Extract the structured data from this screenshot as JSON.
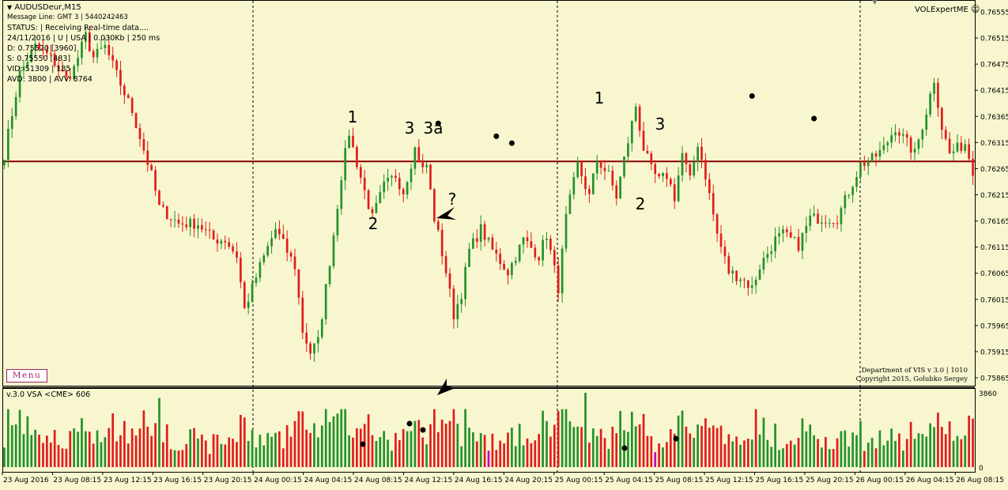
{
  "chart": {
    "symbol_title": "AUDUSDeur,M15",
    "info_lines": [
      "Message Line: GMT 3 | 5440242463",
      "STATUS: | Receiving Real-time data....",
      "24/11/2016 | U | USA | 0.030Kb | 250 ms",
      "D: 0.75520  [3960]",
      "S: 0.75550  [483]",
      "VID: 51309 | 185",
      "AVD: 3800 | AVV: 8764"
    ],
    "expert_name": "VOLExpertME",
    "menu_label": "Menu",
    "copyright_line1": "Department of VIS  v 3.0 | 1010",
    "copyright_line2": "Copyright 2015, Golubko Sergey",
    "resistance_price": 0.76276,
    "price_ylim": [
      0.75865,
      0.76555
    ],
    "price_axis_labels": [
      "0.76555",
      "0.76515",
      "0.76475",
      "0.76415",
      "0.76365",
      "0.76315",
      "0.76265",
      "0.76215",
      "0.76165",
      "0.76115",
      "0.76065",
      "0.76015",
      "0.75965",
      "0.75915",
      "0.75865"
    ],
    "annotations": [
      {
        "label": "1"
      },
      {
        "label": "3"
      },
      {
        "label": "3a"
      },
      {
        "label": "?"
      },
      {
        "label": "2"
      },
      {
        "label": "1"
      },
      {
        "label": "3"
      },
      {
        "label": "2"
      }
    ]
  },
  "indicator": {
    "title": "v.3.0 VSA <CME> 606",
    "axis_max_label": "3860",
    "axis_zero_label": "0"
  },
  "time_axis_labels": [
    "23 Aug 2016",
    "23 Aug 08:15",
    "23 Aug 12:15",
    "23 Aug 16:15",
    "23 Aug 20:15",
    "24 Aug 00:15",
    "24 Aug 04:15",
    "24 Aug 08:15",
    "24 Aug 12:15",
    "24 Aug 16:15",
    "24 Aug 20:15",
    "25 Aug 00:15",
    "25 Aug 04:15",
    "25 Aug 08:15",
    "25 Aug 12:15",
    "25 Aug 16:15",
    "25 Aug 20:15",
    "26 Aug 00:15",
    "26 Aug 04:15",
    "26 Aug 08:15"
  ],
  "colors": {
    "background": "#f8f6cf",
    "bull": "#22922b",
    "bear": "#e11c1c",
    "resistance_line": "#8b0000",
    "separator": "#000000",
    "grid": "#000000",
    "menu_border": "#a0206a"
  },
  "chart_data": {
    "type": "candlestick",
    "symbol": "AUDUSDeur",
    "timeframe": "M15",
    "ylim": [
      0.75865,
      0.76555
    ],
    "resistance_level": 0.76276,
    "path": [
      [
        0,
        0.7629
      ],
      [
        4,
        0.7644
      ],
      [
        8,
        0.7649
      ],
      [
        12,
        0.7647
      ],
      [
        16,
        0.7643
      ],
      [
        18,
        0.7645
      ],
      [
        21,
        0.7651
      ],
      [
        23,
        0.7647
      ],
      [
        26,
        0.7649
      ],
      [
        30,
        0.7642
      ],
      [
        33,
        0.7637
      ],
      [
        38,
        0.7625
      ],
      [
        40,
        0.7619
      ],
      [
        45,
        0.7616
      ],
      [
        50,
        0.7616
      ],
      [
        54,
        0.7613
      ],
      [
        57,
        0.7613
      ],
      [
        60,
        0.761
      ],
      [
        62,
        0.76
      ],
      [
        66,
        0.7608
      ],
      [
        70,
        0.7615
      ],
      [
        75,
        0.7608
      ],
      [
        77,
        0.7596
      ],
      [
        79,
        0.7592
      ],
      [
        81,
        0.7594
      ],
      [
        85,
        0.7614
      ],
      [
        87,
        0.7625
      ],
      [
        89,
        0.7633
      ],
      [
        90,
        0.763
      ],
      [
        93,
        0.7622
      ],
      [
        95,
        0.7617
      ],
      [
        98,
        0.7623
      ],
      [
        101,
        0.7625
      ],
      [
        103,
        0.7622
      ],
      [
        106,
        0.763
      ],
      [
        108,
        0.7626
      ],
      [
        109,
        0.7627
      ],
      [
        111,
        0.7617
      ],
      [
        112,
        0.7614
      ],
      [
        114,
        0.7607
      ],
      [
        116,
        0.7599
      ],
      [
        118,
        0.7603
      ],
      [
        120,
        0.7611
      ],
      [
        123,
        0.7615
      ],
      [
        126,
        0.7611
      ],
      [
        130,
        0.7607
      ],
      [
        134,
        0.7613
      ],
      [
        138,
        0.761
      ],
      [
        140,
        0.7614
      ],
      [
        143,
        0.7604
      ],
      [
        145,
        0.7617
      ],
      [
        148,
        0.7627
      ],
      [
        151,
        0.7621
      ],
      [
        153,
        0.7628
      ],
      [
        156,
        0.7625
      ],
      [
        158,
        0.7621
      ],
      [
        160,
        0.7628
      ],
      [
        163,
        0.7638
      ],
      [
        165,
        0.763
      ],
      [
        167,
        0.7626
      ],
      [
        169,
        0.7624
      ],
      [
        171,
        0.7625
      ],
      [
        173,
        0.7621
      ],
      [
        175,
        0.7629
      ],
      [
        177,
        0.7624
      ],
      [
        179,
        0.7631
      ],
      [
        181,
        0.7625
      ],
      [
        184,
        0.7614
      ],
      [
        187,
        0.7607
      ],
      [
        190,
        0.7606
      ],
      [
        193,
        0.7604
      ],
      [
        195,
        0.7608
      ],
      [
        199,
        0.7613
      ],
      [
        201,
        0.7614
      ],
      [
        205,
        0.7612
      ],
      [
        208,
        0.7617
      ],
      [
        212,
        0.7617
      ],
      [
        215,
        0.7617
      ],
      [
        218,
        0.7622
      ],
      [
        221,
        0.7627
      ],
      [
        224,
        0.7628
      ],
      [
        227,
        0.763
      ],
      [
        230,
        0.7634
      ],
      [
        232,
        0.7632
      ],
      [
        235,
        0.7629
      ],
      [
        238,
        0.7637
      ],
      [
        240,
        0.7643
      ],
      [
        242,
        0.7634
      ],
      [
        244,
        0.7629
      ],
      [
        248,
        0.7631
      ],
      [
        250,
        0.7626
      ]
    ],
    "markers": [
      {
        "label": "1",
        "price": 0.76347
      },
      {
        "label": "3",
        "price": 0.76323
      },
      {
        "label": "3a",
        "price": 0.7631
      },
      {
        "label": "1",
        "price": 0.76398
      },
      {
        "label": "3",
        "price": 0.76356
      }
    ],
    "volume_max": 3860
  }
}
